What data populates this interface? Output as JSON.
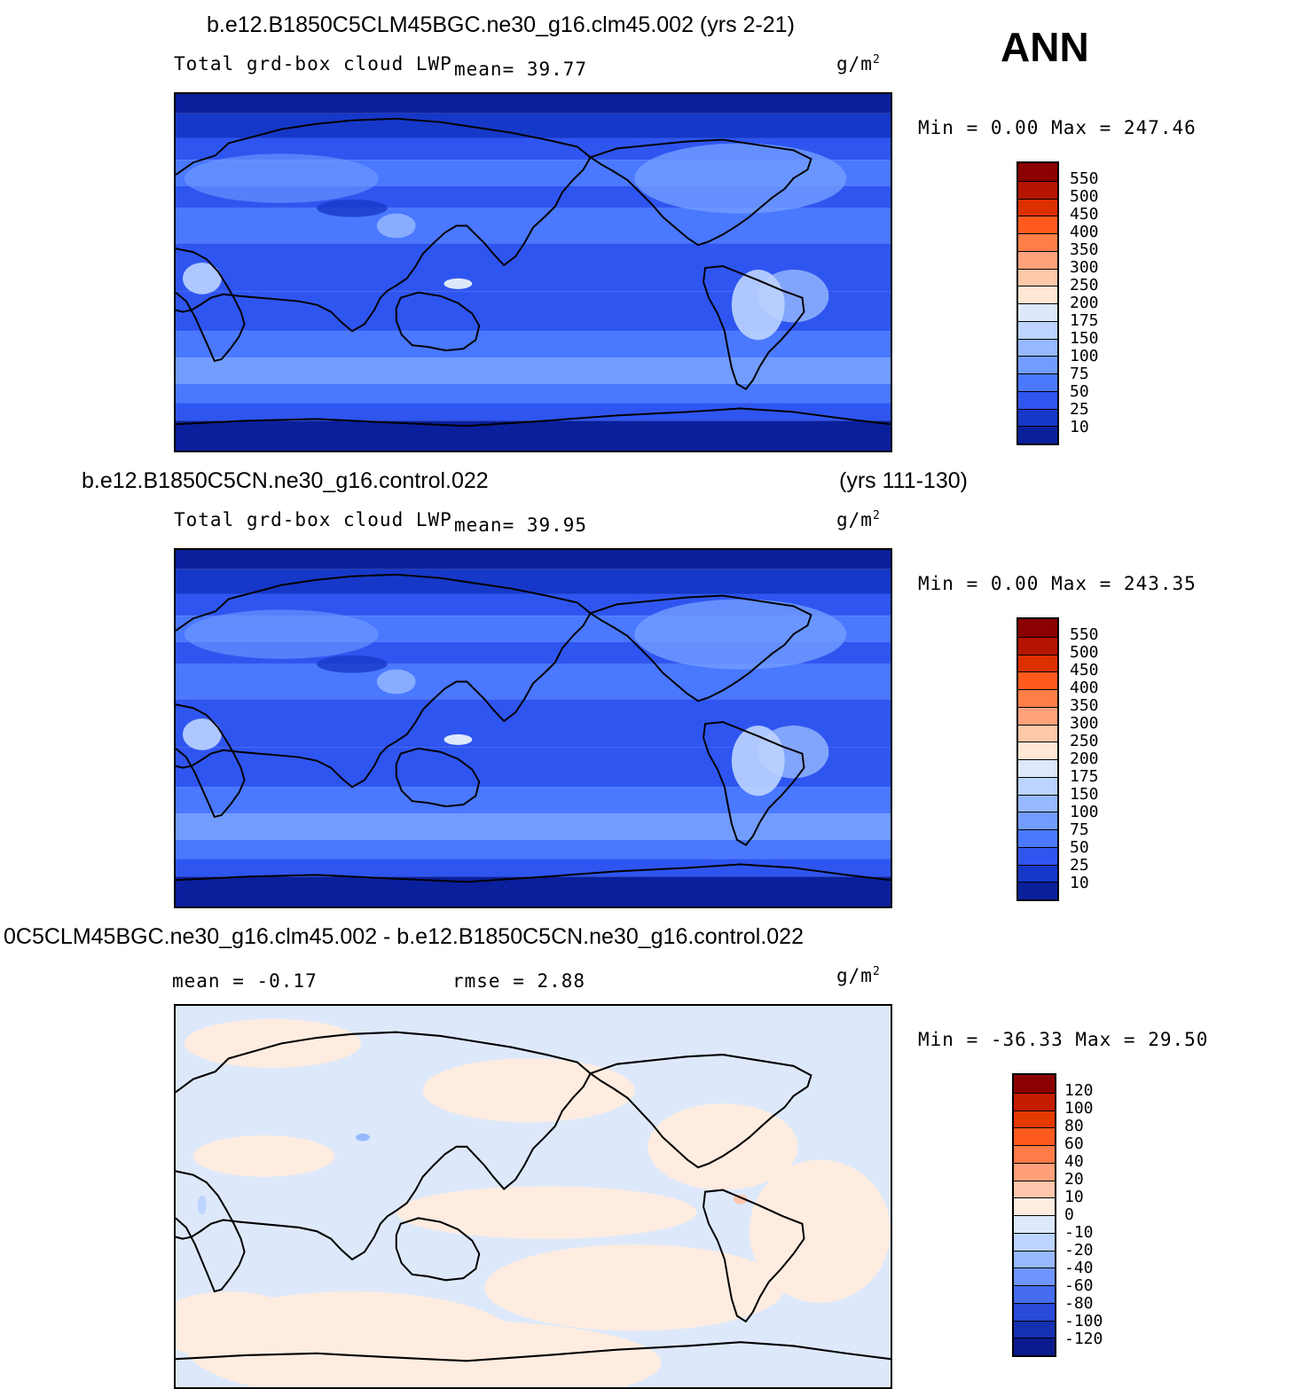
{
  "season": "ANN",
  "panels": [
    {
      "title": "b.e12.B1850C5CLM45BGC.ne30_g16.clm45.002 (yrs 2-21)",
      "title_right": "",
      "variable": "Total grd-box cloud LWP",
      "stat1": "mean=   39.77",
      "stat2": "",
      "units": "g/m",
      "units_sup": "2",
      "minmax": "Min =    0.00 Max = 247.46",
      "levels": [
        "550",
        "500",
        "450",
        "400",
        "350",
        "300",
        "250",
        "200",
        "175",
        "150",
        "100",
        "75",
        "50",
        "25",
        "10"
      ],
      "colors": [
        "#8b0000",
        "#b51500",
        "#dc3000",
        "#ff5a1e",
        "#ff7f47",
        "#ffa27c",
        "#ffc8aa",
        "#ffe8d5",
        "#dde9fa",
        "#bcd4ff",
        "#97b9ff",
        "#729dff",
        "#4a78ff",
        "#2f55f0",
        "#1638c8",
        "#0a1f9c"
      ],
      "mean_value": 39.77
    },
    {
      "title": "b.e12.B1850C5CN.ne30_g16.control.022",
      "title_right": "(yrs 111-130)",
      "variable": "Total grd-box cloud LWP",
      "stat1": "mean=   39.95",
      "stat2": "",
      "units": "g/m",
      "units_sup": "2",
      "minmax": "Min =    0.00 Max = 243.35",
      "levels": [
        "550",
        "500",
        "450",
        "400",
        "350",
        "300",
        "250",
        "200",
        "175",
        "150",
        "100",
        "75",
        "50",
        "25",
        "10"
      ],
      "colors": [
        "#8b0000",
        "#b51500",
        "#dc3000",
        "#ff5a1e",
        "#ff7f47",
        "#ffa27c",
        "#ffc8aa",
        "#ffe8d5",
        "#dde9fa",
        "#bcd4ff",
        "#97b9ff",
        "#729dff",
        "#4a78ff",
        "#2f55f0",
        "#1638c8",
        "#0a1f9c"
      ],
      "mean_value": 39.95
    },
    {
      "title": "0C5CLM45BGC.ne30_g16.clm45.002 - b.e12.B1850C5CN.ne30_g16.control.022",
      "title_right": "",
      "variable": "",
      "stat1": "mean =   -0.17",
      "stat2": "rmse =    2.88",
      "units": "g/m",
      "units_sup": "2",
      "minmax": "Min = -36.33 Max =   29.50",
      "levels": [
        "120",
        "100",
        "80",
        "60",
        "40",
        "20",
        "10",
        "0",
        "-10",
        "-20",
        "-40",
        "-60",
        "-80",
        "-100",
        "-120"
      ],
      "colors": [
        "#8b0000",
        "#c41c00",
        "#e43a00",
        "#ff5a1e",
        "#ff7c48",
        "#ffa07a",
        "#ffc6ab",
        "#ffece0",
        "#dde9fa",
        "#bcd4ff",
        "#97b9ff",
        "#6f96ff",
        "#466cf0",
        "#2a4ad8",
        "#1530b0",
        "#0a1a8c"
      ],
      "mean_value": -0.17
    }
  ]
}
